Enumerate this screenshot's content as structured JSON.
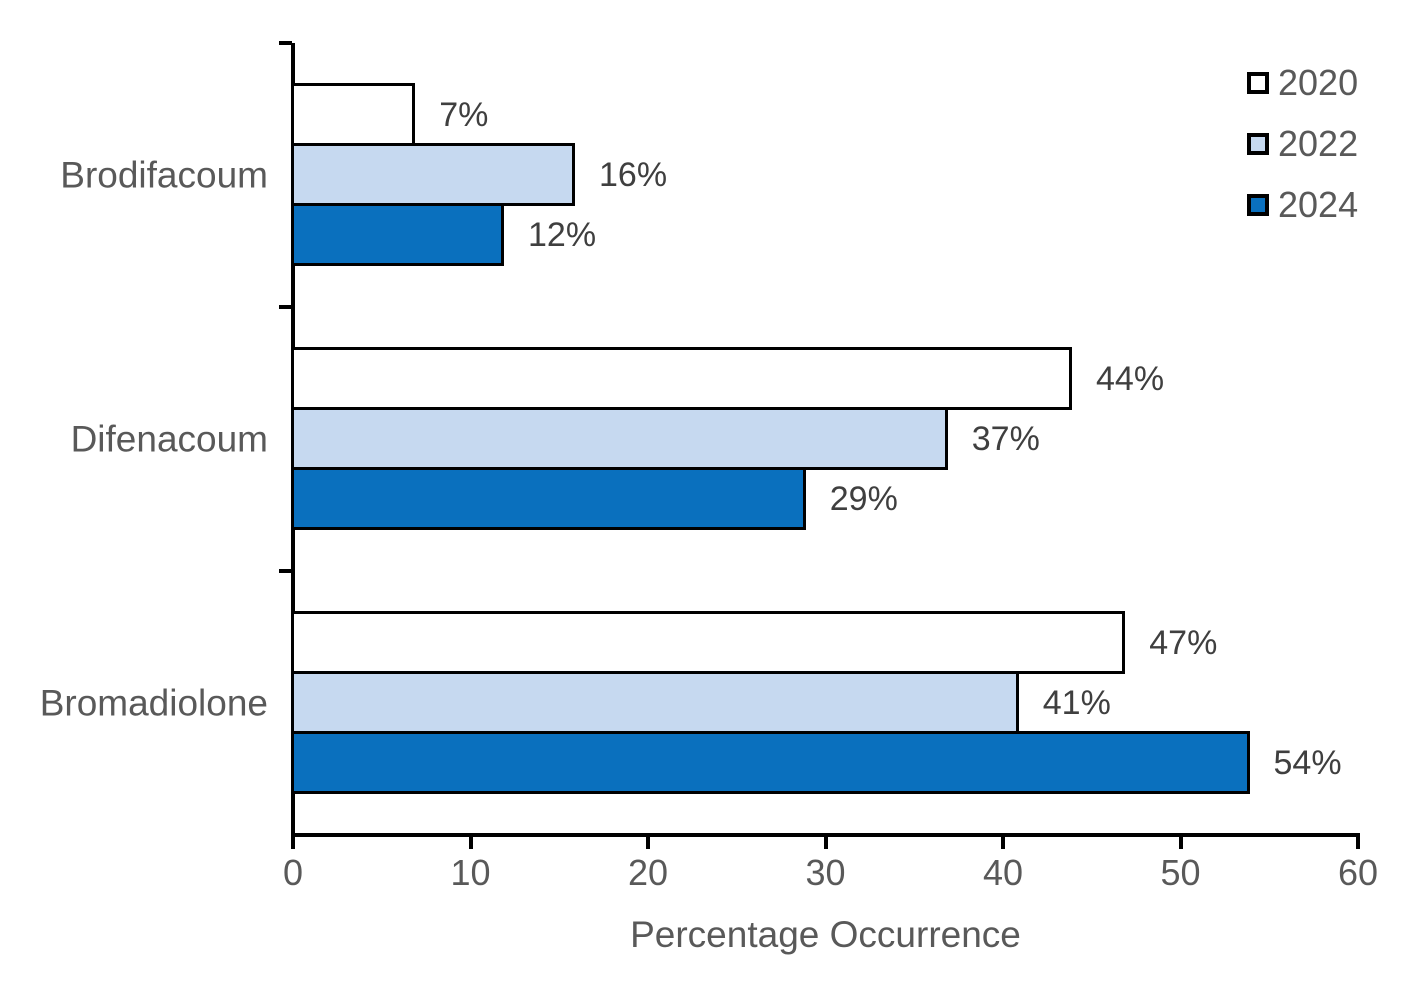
{
  "chart_data": {
    "type": "bar",
    "orientation": "horizontal",
    "title": "",
    "xlabel": "Percentage Occurrence",
    "ylabel": "",
    "xlim": [
      0,
      60
    ],
    "x_ticks": [
      "0",
      "10",
      "20",
      "30",
      "40",
      "50",
      "60"
    ],
    "categories": [
      "Brodifacoum",
      "Difenacoum",
      "Bromadiolone"
    ],
    "series": [
      {
        "name": "2020",
        "color": "#FFFFFF",
        "values": [
          7,
          44,
          47
        ],
        "labels": [
          "7%",
          "44%",
          "47%"
        ]
      },
      {
        "name": "2022",
        "color": "#C6D9F0",
        "values": [
          16,
          37,
          41
        ],
        "labels": [
          "16%",
          "37%",
          "41%"
        ]
      },
      {
        "name": "2024",
        "color": "#0A70BE",
        "values": [
          12,
          29,
          54
        ],
        "labels": [
          "12%",
          "29%",
          "54%"
        ]
      }
    ],
    "legend_position": "top-right",
    "grid": false,
    "bar_border_color": "#000000",
    "axis_color": "#000000",
    "value_label_color": "#3F3F3F",
    "tick_label_color": "#595959"
  }
}
